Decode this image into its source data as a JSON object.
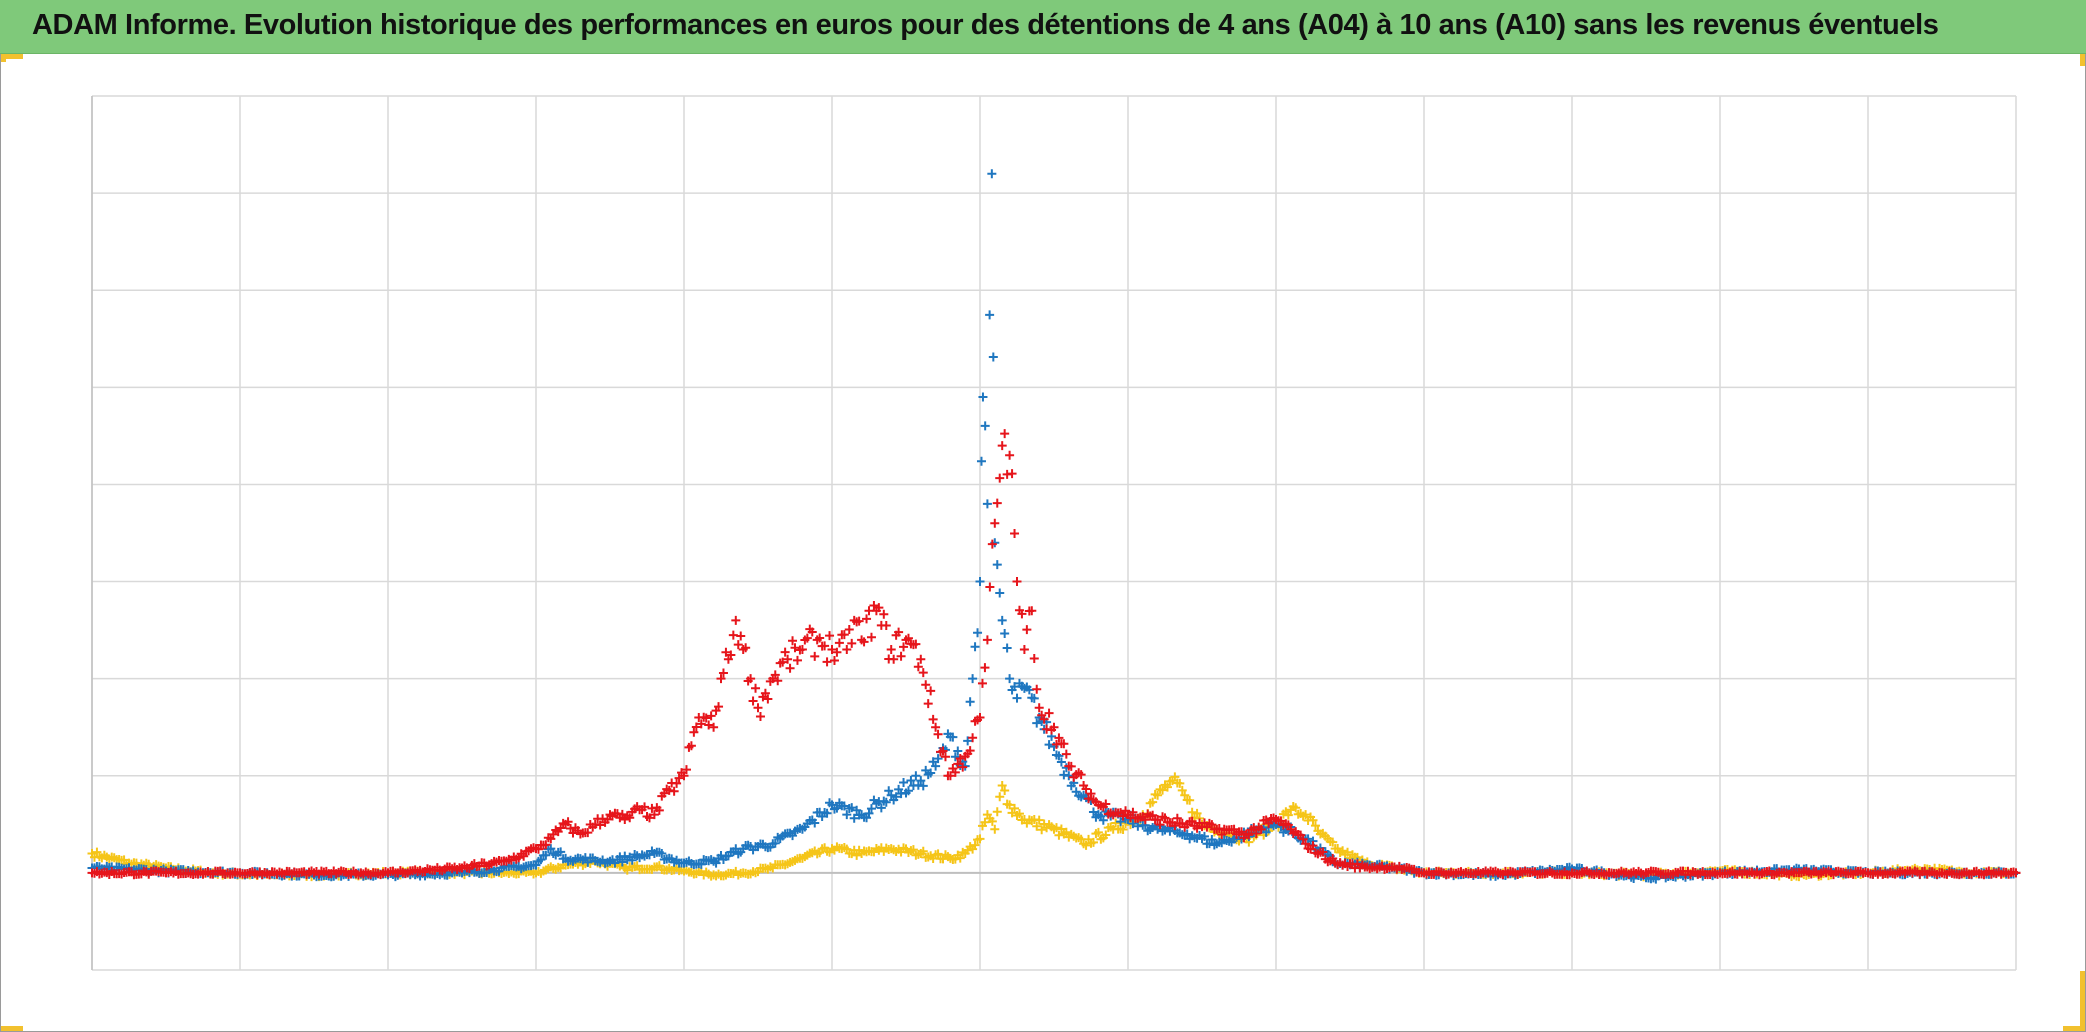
{
  "header": {
    "title": "ADAM Informe. Evolution historique des performances en euros pour des détentions de 4 ans (A04) à 10 ans (A10) sans les revenus éventuels"
  },
  "colors": {
    "title_background": "#7fc97a",
    "corner_accent": "#f2c12e",
    "gridline": "#d9d9d9",
    "baseline": "#bfbfbf"
  },
  "chart_data": {
    "type": "scatter",
    "marker": "plus",
    "x_range": [
      0,
      13
    ],
    "y_range": [
      -1,
      8
    ],
    "baseline_y": 0,
    "grid": true,
    "legend": "none",
    "series": [
      {
        "color": "#f5c518",
        "points": [
          [
            0,
            0.2
          ],
          [
            0.25,
            0.1
          ],
          [
            0.5,
            0.05
          ],
          [
            0.8,
            0
          ],
          [
            1.2,
            -0.02
          ],
          [
            1.6,
            -0.02
          ],
          [
            2,
            0
          ],
          [
            2.5,
            0
          ],
          [
            3,
            0
          ],
          [
            3.2,
            0.08
          ],
          [
            3.4,
            0.12
          ],
          [
            3.6,
            0.05
          ],
          [
            3.8,
            0.06
          ],
          [
            4,
            0.02
          ],
          [
            4.2,
            -0.02
          ],
          [
            4.4,
            0
          ],
          [
            4.6,
            0.05
          ],
          [
            4.8,
            0.15
          ],
          [
            5,
            0.25
          ],
          [
            5.2,
            0.2
          ],
          [
            5.4,
            0.25
          ],
          [
            5.6,
            0.2
          ],
          [
            5.8,
            0.15
          ],
          [
            5.9,
            0.2
          ],
          [
            6.0,
            0.35
          ],
          [
            6.05,
            0.6
          ],
          [
            6.1,
            0.45
          ],
          [
            6.15,
            0.9
          ],
          [
            6.2,
            0.7
          ],
          [
            6.3,
            0.55
          ],
          [
            6.5,
            0.45
          ],
          [
            6.7,
            0.3
          ],
          [
            6.9,
            0.45
          ],
          [
            7.1,
            0.6
          ],
          [
            7.2,
            0.8
          ],
          [
            7.3,
            0.95
          ],
          [
            7.4,
            0.75
          ],
          [
            7.5,
            0.5
          ],
          [
            7.6,
            0.45
          ],
          [
            7.8,
            0.35
          ],
          [
            8.0,
            0.5
          ],
          [
            8.1,
            0.65
          ],
          [
            8.2,
            0.6
          ],
          [
            8.3,
            0.4
          ],
          [
            8.4,
            0.25
          ],
          [
            8.6,
            0.1
          ],
          [
            8.8,
            0.05
          ],
          [
            9,
            0
          ],
          [
            9.5,
            0
          ],
          [
            10,
            0
          ],
          [
            10.5,
            -0.02
          ],
          [
            11,
            0.02
          ],
          [
            11.5,
            -0.02
          ],
          [
            12,
            0
          ],
          [
            12.4,
            0.04
          ],
          [
            12.6,
            0.01
          ],
          [
            13,
            0
          ]
        ]
      },
      {
        "color": "#1f77c0",
        "points": [
          [
            0,
            0.05
          ],
          [
            0.5,
            0.02
          ],
          [
            1,
            0
          ],
          [
            1.5,
            -0.02
          ],
          [
            2,
            -0.02
          ],
          [
            2.5,
            0
          ],
          [
            3,
            0.08
          ],
          [
            3.1,
            0.25
          ],
          [
            3.2,
            0.15
          ],
          [
            3.5,
            0.12
          ],
          [
            3.8,
            0.2
          ],
          [
            4,
            0.1
          ],
          [
            4.2,
            0.12
          ],
          [
            4.4,
            0.25
          ],
          [
            4.6,
            0.3
          ],
          [
            4.8,
            0.45
          ],
          [
            5,
            0.7
          ],
          [
            5.2,
            0.6
          ],
          [
            5.4,
            0.8
          ],
          [
            5.6,
            0.95
          ],
          [
            5.7,
            1.1
          ],
          [
            5.8,
            1.4
          ],
          [
            5.9,
            1.1
          ],
          [
            5.95,
            2.0
          ],
          [
            6,
            3.0
          ],
          [
            6.02,
            4.9
          ],
          [
            6.05,
            3.8
          ],
          [
            6.08,
            7.2
          ],
          [
            6.1,
            3.4
          ],
          [
            6.15,
            2.6
          ],
          [
            6.2,
            2.0
          ],
          [
            6.25,
            1.8
          ],
          [
            6.3,
            1.9
          ],
          [
            6.4,
            1.6
          ],
          [
            6.5,
            1.3
          ],
          [
            6.6,
            1.0
          ],
          [
            6.7,
            0.8
          ],
          [
            6.8,
            0.6
          ],
          [
            7,
            0.55
          ],
          [
            7.2,
            0.45
          ],
          [
            7.4,
            0.4
          ],
          [
            7.6,
            0.3
          ],
          [
            7.8,
            0.4
          ],
          [
            8.0,
            0.5
          ],
          [
            8.2,
            0.35
          ],
          [
            8.4,
            0.1
          ],
          [
            8.6,
            0.08
          ],
          [
            8.8,
            0.05
          ],
          [
            9,
            0
          ],
          [
            9.5,
            -0.02
          ],
          [
            10,
            0.04
          ],
          [
            10.5,
            -0.05
          ],
          [
            11,
            0
          ],
          [
            11.5,
            0.03
          ],
          [
            12,
            0
          ],
          [
            12.5,
            0
          ],
          [
            13,
            0
          ]
        ]
      },
      {
        "color": "#e6151b",
        "points": [
          [
            0,
            0
          ],
          [
            0.5,
            0
          ],
          [
            1,
            0
          ],
          [
            1.5,
            0
          ],
          [
            2,
            0
          ],
          [
            2.5,
            0.05
          ],
          [
            2.8,
            0.12
          ],
          [
            3.0,
            0.25
          ],
          [
            3.1,
            0.35
          ],
          [
            3.2,
            0.5
          ],
          [
            3.3,
            0.4
          ],
          [
            3.4,
            0.5
          ],
          [
            3.5,
            0.6
          ],
          [
            3.6,
            0.55
          ],
          [
            3.7,
            0.65
          ],
          [
            3.8,
            0.6
          ],
          [
            3.9,
            0.85
          ],
          [
            4,
            1.0
          ],
          [
            4.1,
            1.6
          ],
          [
            4.2,
            1.5
          ],
          [
            4.25,
            2.0
          ],
          [
            4.3,
            2.2
          ],
          [
            4.35,
            2.6
          ],
          [
            4.4,
            2.3
          ],
          [
            4.45,
            2.0
          ],
          [
            4.5,
            1.7
          ],
          [
            4.6,
            2.0
          ],
          [
            4.7,
            2.2
          ],
          [
            4.8,
            2.3
          ],
          [
            4.9,
            2.4
          ],
          [
            5,
            2.3
          ],
          [
            5.1,
            2.3
          ],
          [
            5.15,
            2.6
          ],
          [
            5.2,
            2.4
          ],
          [
            5.3,
            2.7
          ],
          [
            5.4,
            2.3
          ],
          [
            5.5,
            2.4
          ],
          [
            5.6,
            2.2
          ],
          [
            5.7,
            1.5
          ],
          [
            5.8,
            1.0
          ],
          [
            5.9,
            1.2
          ],
          [
            6,
            1.6
          ],
          [
            6.05,
            2.4
          ],
          [
            6.1,
            3.6
          ],
          [
            6.15,
            4.4
          ],
          [
            6.2,
            4.3
          ],
          [
            6.25,
            3.0
          ],
          [
            6.3,
            2.3
          ],
          [
            6.35,
            2.7
          ],
          [
            6.4,
            1.7
          ],
          [
            6.5,
            1.5
          ],
          [
            6.6,
            1.1
          ],
          [
            6.7,
            0.9
          ],
          [
            6.8,
            0.7
          ],
          [
            7,
            0.6
          ],
          [
            7.2,
            0.55
          ],
          [
            7.4,
            0.5
          ],
          [
            7.6,
            0.45
          ],
          [
            7.8,
            0.4
          ],
          [
            8.0,
            0.55
          ],
          [
            8.1,
            0.45
          ],
          [
            8.2,
            0.3
          ],
          [
            8.4,
            0.1
          ],
          [
            8.6,
            0.06
          ],
          [
            8.8,
            0.06
          ],
          [
            9,
            0
          ],
          [
            9.5,
            0
          ],
          [
            10,
            0
          ],
          [
            10.5,
            0
          ],
          [
            11,
            0
          ],
          [
            11.5,
            0
          ],
          [
            12,
            0
          ],
          [
            12.5,
            0
          ],
          [
            13,
            0
          ]
        ]
      }
    ]
  }
}
